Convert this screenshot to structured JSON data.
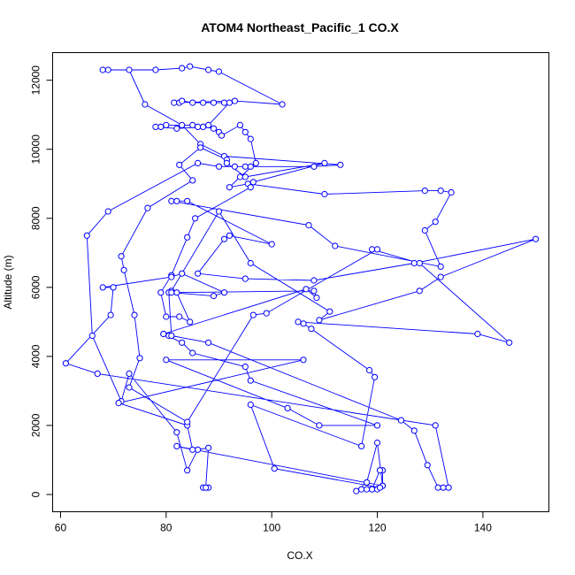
{
  "chart_data": {
    "type": "line",
    "title": "ATOM4 Northeast_Pacific_1 CO.X",
    "xlabel": "CO.X",
    "ylabel": "Altitude (m)",
    "xlim": [
      58.5,
      152.5
    ],
    "ylim": [
      -500,
      12800
    ],
    "xticks": [
      60,
      80,
      100,
      120,
      140
    ],
    "yticks": [
      0,
      2000,
      4000,
      6000,
      8000,
      10000,
      12000
    ],
    "grid": false,
    "legend": "none",
    "line_color": "#0000ff",
    "marker": "open-circle",
    "points": [
      [
        87,
        200
      ],
      [
        88,
        200
      ],
      [
        87.5,
        200
      ],
      [
        88,
        1350
      ],
      [
        86,
        1300
      ],
      [
        84,
        700
      ],
      [
        82,
        1800
      ],
      [
        73,
        3500
      ],
      [
        71.5,
        2700
      ],
      [
        66,
        4600
      ],
      [
        65,
        7500
      ],
      [
        69,
        8200
      ],
      [
        86,
        9600
      ],
      [
        90,
        9500
      ],
      [
        93,
        9500
      ],
      [
        95,
        9500
      ],
      [
        96,
        9500
      ],
      [
        108,
        9500
      ],
      [
        113,
        9550
      ],
      [
        91,
        9800
      ],
      [
        86.5,
        10150
      ],
      [
        83,
        10700
      ],
      [
        76,
        11300
      ],
      [
        73,
        12300
      ],
      [
        69,
        12300
      ],
      [
        68,
        12300
      ],
      [
        78,
        12300
      ],
      [
        83,
        12350
      ],
      [
        84.5,
        12400
      ],
      [
        88,
        12300
      ],
      [
        90,
        12250
      ],
      [
        102,
        11300
      ],
      [
        93,
        11400
      ],
      [
        81.5,
        11350
      ],
      [
        82.5,
        11350
      ],
      [
        83,
        11400
      ],
      [
        85,
        11350
      ],
      [
        87,
        11350
      ],
      [
        89,
        11350
      ],
      [
        91,
        11350
      ],
      [
        92,
        11350
      ],
      [
        88,
        10700
      ],
      [
        86,
        10650
      ],
      [
        85,
        10700
      ],
      [
        80,
        10700
      ],
      [
        79,
        10650
      ],
      [
        78,
        10650
      ],
      [
        82,
        10600
      ],
      [
        87,
        10650
      ],
      [
        89,
        10600
      ],
      [
        90,
        10500
      ],
      [
        90.5,
        10400
      ],
      [
        94,
        10700
      ],
      [
        95,
        10500
      ],
      [
        96,
        10300
      ],
      [
        97,
        9600
      ],
      [
        94,
        9200
      ],
      [
        92,
        8900
      ],
      [
        95.5,
        9000
      ],
      [
        110,
        8700
      ],
      [
        129,
        8800
      ],
      [
        132,
        8800
      ],
      [
        134,
        8750
      ],
      [
        131,
        7900
      ],
      [
        129,
        7650
      ],
      [
        132,
        6600
      ],
      [
        112,
        7200
      ],
      [
        107,
        7800
      ],
      [
        81,
        8500
      ],
      [
        82,
        8500
      ],
      [
        84,
        8500
      ],
      [
        100,
        7250
      ],
      [
        92,
        7500
      ],
      [
        91,
        7400
      ],
      [
        86,
        6400
      ],
      [
        95,
        6250
      ],
      [
        108,
        6200
      ],
      [
        127,
        6700
      ],
      [
        150,
        7400
      ],
      [
        132,
        6300
      ],
      [
        128,
        5900
      ],
      [
        109,
        5050
      ],
      [
        111,
        5300
      ],
      [
        96,
        6700
      ],
      [
        90,
        8200
      ],
      [
        81,
        5900
      ],
      [
        80.5,
        5850
      ],
      [
        81,
        4600
      ],
      [
        80.5,
        4600
      ],
      [
        79.5,
        4650
      ],
      [
        83,
        4400
      ],
      [
        85,
        4100
      ],
      [
        95,
        3700
      ],
      [
        96,
        3300
      ],
      [
        120,
        2000
      ],
      [
        109,
        2000
      ],
      [
        103,
        2500
      ],
      [
        80,
        3900
      ],
      [
        106,
        3900
      ],
      [
        71,
        2650
      ],
      [
        84,
        2000
      ],
      [
        85,
        1300
      ],
      [
        82,
        1400
      ],
      [
        121,
        250
      ],
      [
        121,
        700
      ],
      [
        120.5,
        700
      ],
      [
        119,
        150
      ],
      [
        117,
        150
      ],
      [
        116,
        100
      ],
      [
        118,
        350
      ],
      [
        120,
        1500
      ],
      [
        121,
        250
      ],
      [
        118,
        150
      ],
      [
        119,
        150
      ],
      [
        120,
        150
      ],
      [
        120.5,
        200
      ],
      [
        100.5,
        750
      ],
      [
        96,
        2600
      ],
      [
        117,
        1400
      ],
      [
        119.5,
        3400
      ],
      [
        118.5,
        3600
      ],
      [
        107.5,
        4800
      ],
      [
        106,
        4950
      ],
      [
        105,
        5000
      ],
      [
        139,
        4650
      ],
      [
        145,
        4400
      ],
      [
        128,
        6700
      ],
      [
        119,
        7100
      ],
      [
        120,
        7100
      ],
      [
        99,
        5250
      ],
      [
        96.5,
        5200
      ],
      [
        84,
        2100
      ],
      [
        73,
        3100
      ],
      [
        75,
        3950
      ],
      [
        74,
        5200
      ],
      [
        72,
        6500
      ],
      [
        71.5,
        6900
      ],
      [
        76.5,
        8300
      ],
      [
        85,
        9100
      ],
      [
        82.5,
        9550
      ],
      [
        86.5,
        10050
      ],
      [
        91.5,
        9700
      ],
      [
        91.5,
        9600
      ],
      [
        95,
        9200
      ],
      [
        110,
        9600
      ],
      [
        96.5,
        9050
      ],
      [
        96,
        8900
      ],
      [
        85.5,
        8000
      ],
      [
        84,
        7450
      ],
      [
        81,
        6350
      ],
      [
        79,
        5850
      ],
      [
        80,
        5150
      ],
      [
        82.5,
        5150
      ],
      [
        84.5,
        5000
      ],
      [
        82,
        5850
      ],
      [
        108,
        5900
      ],
      [
        108.5,
        5700
      ],
      [
        106.5,
        5950
      ],
      [
        79.5,
        4650
      ],
      [
        81,
        4600
      ],
      [
        88,
        4400
      ],
      [
        124.5,
        2150
      ],
      [
        127,
        1850
      ],
      [
        129.5,
        850
      ],
      [
        131.5,
        200
      ],
      [
        132.5,
        200
      ],
      [
        133.5,
        200
      ],
      [
        131,
        2000
      ],
      [
        67,
        3500
      ],
      [
        61,
        3800
      ],
      [
        69.5,
        5200
      ],
      [
        70,
        6000
      ],
      [
        68,
        6000
      ],
      [
        81,
        6300
      ],
      [
        83,
        6400
      ],
      [
        91,
        5850
      ],
      [
        89,
        5750
      ],
      [
        81,
        5850
      ]
    ]
  }
}
